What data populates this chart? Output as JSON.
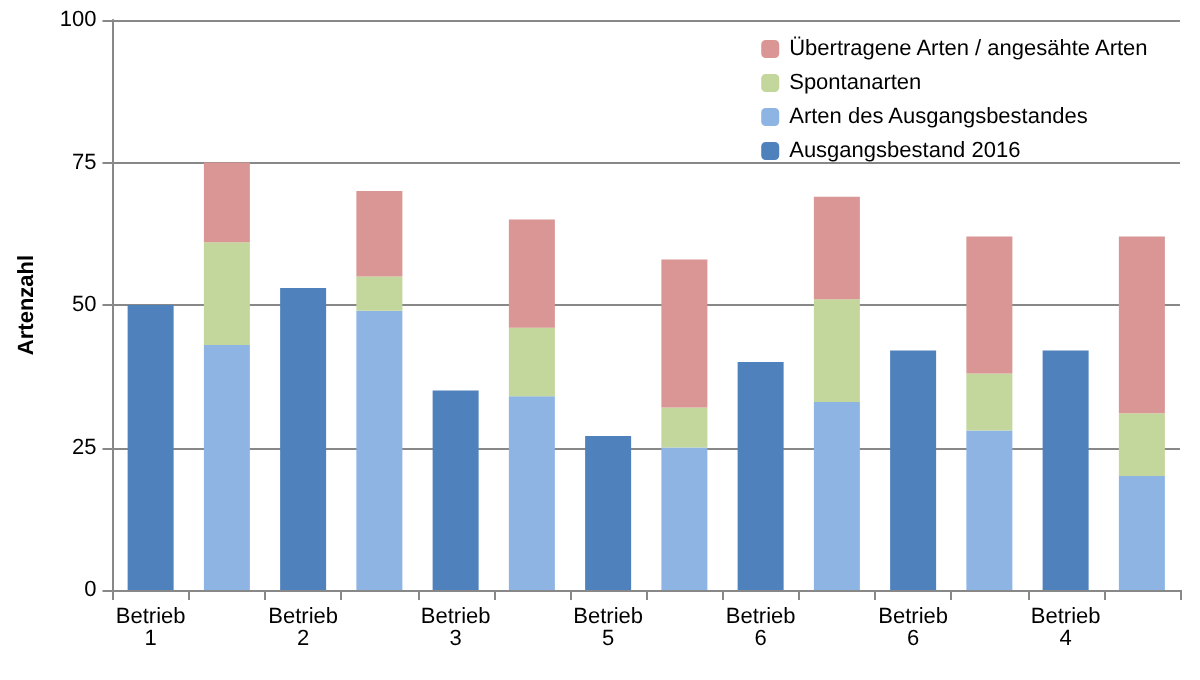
{
  "chart_data": {
    "type": "bar",
    "stacked": true,
    "ylabel": "Artenzahl",
    "categories": [
      "Betrieb 1",
      null,
      "Betrieb 2",
      null,
      "Betrieb 3",
      null,
      "Betrieb 5",
      null,
      "Betrieb 6",
      null,
      "Betrieb 6",
      null,
      "Betrieb 4",
      null
    ],
    "series": [
      {
        "name": "Ausgangsbestand 2016",
        "color": "#4f81bd",
        "values": [
          50,
          null,
          53,
          null,
          35,
          null,
          27,
          null,
          40,
          null,
          42,
          null,
          42,
          null
        ]
      },
      {
        "name": "Arten des Ausgangsbestandes",
        "color": "#8eb4e3",
        "values": [
          null,
          43,
          null,
          49,
          null,
          34,
          null,
          25,
          null,
          33,
          null,
          28,
          null,
          20
        ]
      },
      {
        "name": "Spontanarten",
        "color": "#c3d69b",
        "values": [
          null,
          18,
          null,
          6,
          null,
          12,
          null,
          7,
          null,
          18,
          null,
          10,
          null,
          11
        ]
      },
      {
        "name": "Übertragene Arten / angesähte Arten",
        "color": "#d99694",
        "values": [
          null,
          14,
          null,
          15,
          null,
          19,
          null,
          26,
          null,
          18,
          null,
          24,
          null,
          31
        ]
      }
    ],
    "ylim": [
      0,
      100
    ],
    "yticks": [
      0,
      25,
      50,
      75,
      100
    ],
    "grid": "y",
    "legend": "top right"
  }
}
